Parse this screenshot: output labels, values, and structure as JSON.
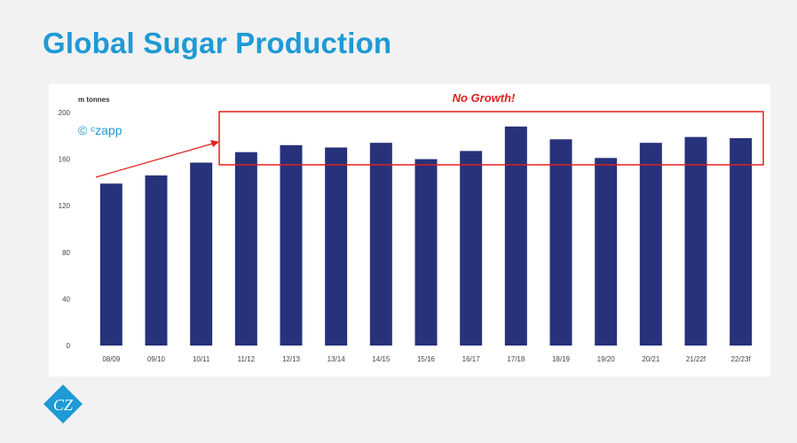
{
  "slide": {
    "title": "Global Sugar Production",
    "watermark": "© ᶜzapp",
    "logo_text": "CZ"
  },
  "colors": {
    "title": "#1e9ad6",
    "bar": "#27327b",
    "annotation": "#e02020",
    "watermark": "#1e9ad6"
  },
  "chart_data": {
    "type": "bar",
    "title": "",
    "ylabel": "m tonnes",
    "xlabel": "",
    "ylim": [
      0,
      200
    ],
    "yticks": [
      0,
      40,
      80,
      120,
      160,
      200
    ],
    "categories": [
      "08/09",
      "09/10",
      "10/11",
      "11/12",
      "12/13",
      "13/14",
      "14/15",
      "15/16",
      "16/17",
      "17/18",
      "18/19",
      "19/20",
      "20/21",
      "21/22f",
      "22/23f"
    ],
    "values": [
      139,
      146,
      157,
      166,
      172,
      170,
      174,
      160,
      167,
      188,
      177,
      161,
      174,
      179,
      178
    ],
    "annotation": "No Growth!"
  }
}
